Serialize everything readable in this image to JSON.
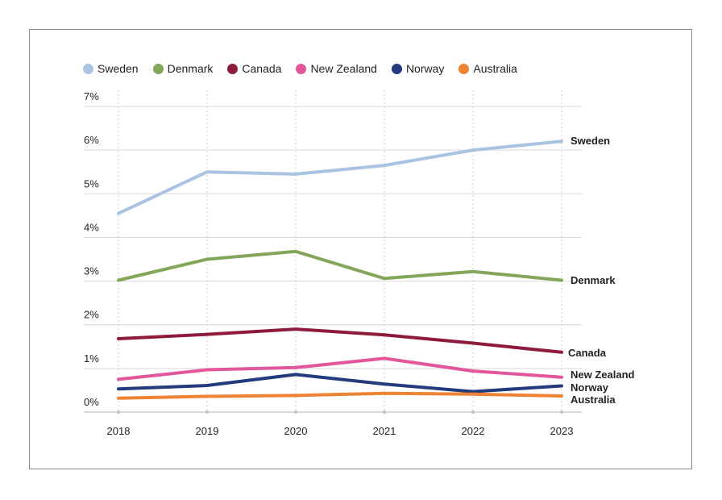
{
  "chart_data": {
    "type": "line",
    "title": "",
    "xlabel": "",
    "ylabel": "",
    "x": [
      "2018",
      "2019",
      "2020",
      "2021",
      "2022",
      "2023"
    ],
    "ylim": [
      0,
      7
    ],
    "yticks": [
      "0%",
      "1%",
      "2%",
      "3%",
      "4%",
      "5%",
      "6%",
      "7%"
    ],
    "grid": true,
    "legend_position": "top-left",
    "series": [
      {
        "name": "Sweden",
        "color": "#a8c4e2",
        "values": [
          4.55,
          5.5,
          5.45,
          5.65,
          6.0,
          6.2
        ]
      },
      {
        "name": "Denmark",
        "color": "#84a65a",
        "values": [
          3.02,
          3.5,
          3.68,
          3.06,
          3.22,
          3.02
        ]
      },
      {
        "name": "Canada",
        "color": "#8e1b3b",
        "values": [
          1.68,
          1.78,
          1.9,
          1.77,
          1.58,
          1.37
        ]
      },
      {
        "name": "New Zealand",
        "color": "#e2569c",
        "values": [
          0.75,
          0.97,
          1.02,
          1.23,
          0.94,
          0.8
        ]
      },
      {
        "name": "Norway",
        "color": "#233a7d",
        "values": [
          0.53,
          0.61,
          0.86,
          0.64,
          0.47,
          0.6
        ]
      },
      {
        "name": "Australia",
        "color": "#ee8433",
        "values": [
          0.32,
          0.36,
          0.38,
          0.43,
          0.41,
          0.37
        ]
      }
    ]
  }
}
